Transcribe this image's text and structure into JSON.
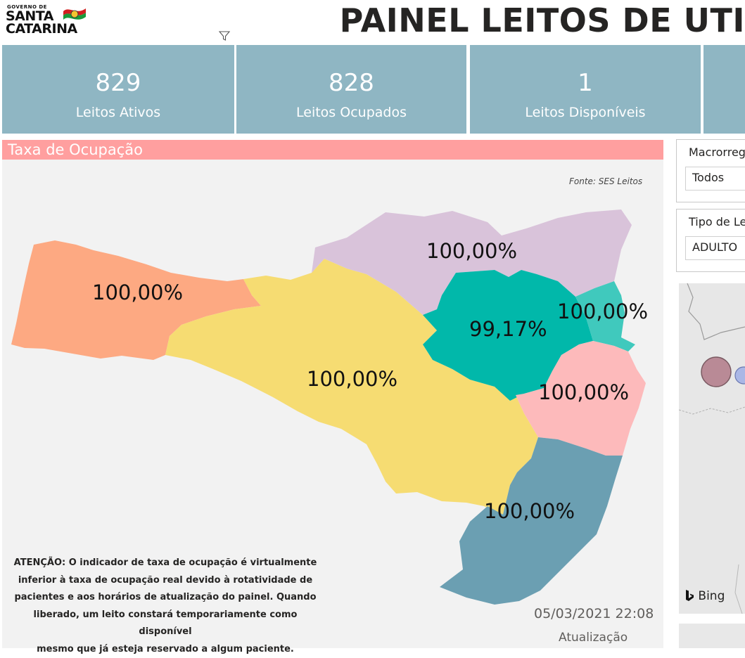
{
  "header": {
    "logo": {
      "line0": "GOVERNO DE",
      "line1": "SANTA",
      "line2": "CATARINA"
    },
    "title": "PAINEL LEITOS DE UTI"
  },
  "kpis": [
    {
      "value": "829",
      "label": "Leitos Ativos"
    },
    {
      "value": "828",
      "label": "Leitos Ocupados"
    },
    {
      "value": "1",
      "label": "Leitos Disponíveis"
    }
  ],
  "occupancy_panel": {
    "title": "Taxa de Ocupação",
    "source": "Fonte: SES Leitos",
    "regions": [
      {
        "value": "100,00%",
        "color": "#fda982"
      },
      {
        "value": "100,00%",
        "color": "#d9c3da"
      },
      {
        "value": "100,00%",
        "color": "#f6dc72"
      },
      {
        "value": "99,17%",
        "color": "#01b8aa"
      },
      {
        "value": "100,00%",
        "color": "#40c9bd"
      },
      {
        "value": "100,00%",
        "color": "#fdbabb"
      },
      {
        "value": "100,00%",
        "color": "#6b9fb2"
      }
    ],
    "notice_lines": [
      "ATENÇÃO: O indicador de taxa de ocupação é virtualmente",
      "inferior à taxa de ocupação real devido à rotatividade de",
      "pacientes e aos horários de atualização do painel.  Quando",
      "liberado, um leito constará temporariamente como disponível",
      "mesmo que já esteja reservado a algum paciente."
    ],
    "update_datetime": "05/03/2021 22:08",
    "update_label": "Atualização"
  },
  "slicers": [
    {
      "label": "Macrorregião",
      "value": "Todos"
    },
    {
      "label": "Tipo de Leito",
      "value": "ADULTO"
    }
  ],
  "bubble_map": {
    "attribution": "Bing"
  }
}
